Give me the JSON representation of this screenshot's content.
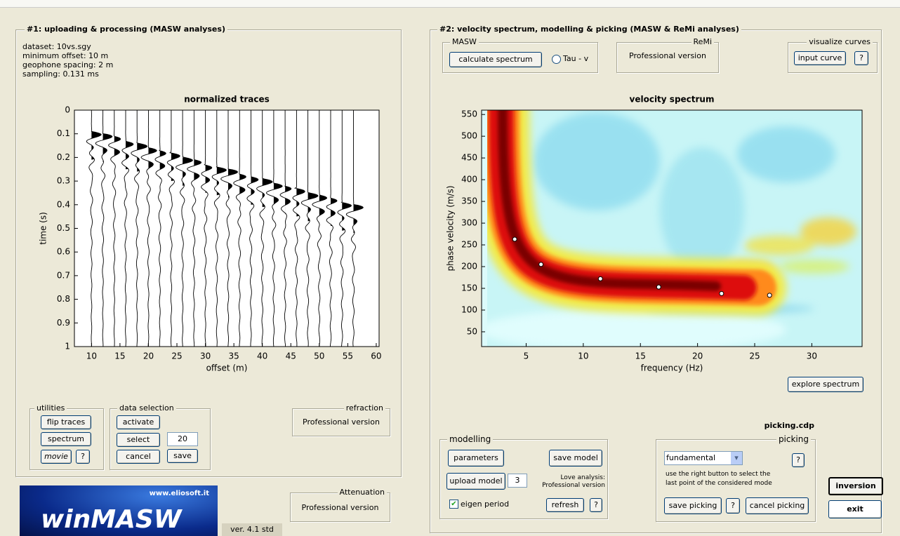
{
  "panel1": {
    "title": "#1: uploading & processing (MASW analyses)",
    "info": [
      "dataset: 10vs.sgy",
      "minimum offset: 10 m",
      "geophone spacing: 2 m",
      "sampling: 0.131 ms"
    ],
    "traces": {
      "type": "wiggle",
      "title": "normalized traces",
      "x_label": "offset (m)",
      "y_label": "time (s)",
      "xlim": [
        7,
        60.5
      ],
      "ylim": [
        0,
        1
      ],
      "xticks": [
        10,
        15,
        20,
        25,
        30,
        35,
        40,
        45,
        50,
        55,
        60
      ],
      "yticks": [
        0,
        0.1,
        0.2,
        0.3,
        0.4,
        0.5,
        0.6,
        0.7,
        0.8,
        0.9,
        1
      ],
      "offsets": [
        10,
        12,
        14,
        16,
        18,
        20,
        22,
        24,
        26,
        28,
        30,
        32,
        34,
        36,
        38,
        40,
        42,
        44,
        46,
        48,
        50,
        52,
        54,
        56
      ],
      "first_arrival": [
        0.09,
        0.1,
        0.11,
        0.13,
        0.14,
        0.16,
        0.17,
        0.18,
        0.2,
        0.21,
        0.23,
        0.24,
        0.25,
        0.27,
        0.28,
        0.29,
        0.31,
        0.32,
        0.33,
        0.35,
        0.36,
        0.37,
        0.39,
        0.4
      ]
    },
    "utilities": {
      "title": "utilities",
      "flip": "flip traces",
      "spectrum": "spectrum",
      "movie": "movie",
      "help": "?"
    },
    "data_selection": {
      "title": "data selection",
      "activate": "activate",
      "select": "select",
      "select_value": "20",
      "cancel": "cancel",
      "save": "save"
    },
    "refraction": {
      "title": "refraction",
      "text": "Professional version"
    }
  },
  "logo": {
    "url": "www.eliosoft.it",
    "name": "winMASW"
  },
  "attenuation": {
    "title": "Attenuation",
    "text": "Professional version"
  },
  "version": "ver. 4.1 std",
  "panel2": {
    "title": "#2: velocity spectrum, modelling & picking (MASW & ReMi analyses)",
    "masw": {
      "title": "MASW",
      "button": "calculate spectrum",
      "radio": "Tau - v"
    },
    "remi": {
      "title": "ReMi",
      "text": "Professional version"
    },
    "visualize": {
      "title": "visualize curves",
      "button": "input curve",
      "help": "?"
    },
    "spectrum": {
      "type": "heatmap",
      "title": "velocity spectrum",
      "x_label": "frequency (Hz)",
      "y_label": "phase velocity (m/s)",
      "xlim": [
        1.1,
        34.4
      ],
      "ylim": [
        16,
        560
      ],
      "xticks": [
        5,
        10,
        15,
        20,
        25,
        30
      ],
      "yticks": [
        50,
        100,
        150,
        200,
        250,
        300,
        350,
        400,
        450,
        500,
        550
      ],
      "picks": {
        "x": [
          4,
          6.3,
          11.5,
          16.6,
          22.1,
          26.3
        ],
        "y": [
          263,
          205,
          172,
          153,
          138,
          134
        ]
      }
    },
    "explore": "explore spectrum",
    "modelling": {
      "title": "modelling",
      "parameters": "parameters",
      "save_model": "save model",
      "upload_model": "upload model",
      "modes": "3",
      "love": [
        "Love analysis:",
        "Professional version"
      ],
      "eigen": "eigen period",
      "refresh": "refresh",
      "help": "?"
    },
    "picking": {
      "file": "picking.cdp",
      "title": "picking",
      "mode": "fundamental",
      "help": "?",
      "hint": [
        "use the right button to select the",
        "last point of the considered mode"
      ],
      "save": "save picking",
      "help2": "?",
      "cancel": "cancel picking"
    },
    "inversion": "inversion",
    "exit": "exit"
  }
}
